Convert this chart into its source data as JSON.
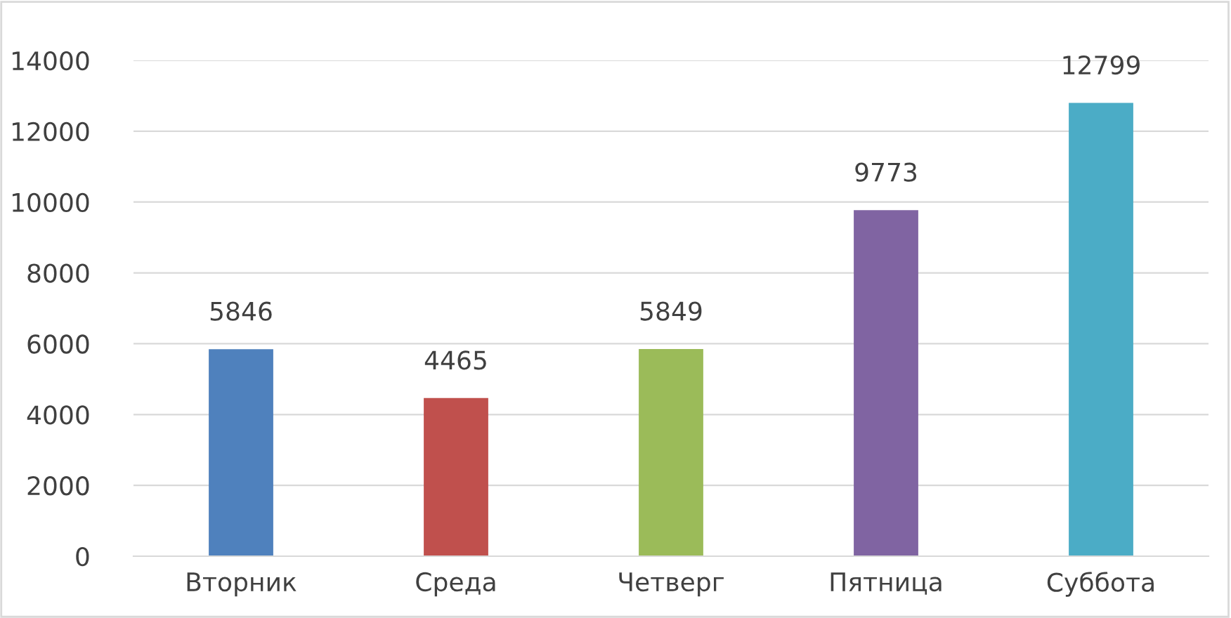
{
  "chart_data": {
    "type": "bar",
    "categories": [
      "Вторник",
      "Среда",
      "Четверг",
      "Пятница",
      "Суббота"
    ],
    "values": [
      5846,
      4465,
      5849,
      9773,
      12799
    ],
    "colors": [
      "#4f81bd",
      "#c0504d",
      "#9bbb59",
      "#8064a2",
      "#4bacc6"
    ],
    "ylim": [
      0,
      14000
    ],
    "yticks": [
      0,
      2000,
      4000,
      6000,
      8000,
      10000,
      12000,
      14000
    ],
    "data_labels": true,
    "grid": "y",
    "legend": false
  }
}
